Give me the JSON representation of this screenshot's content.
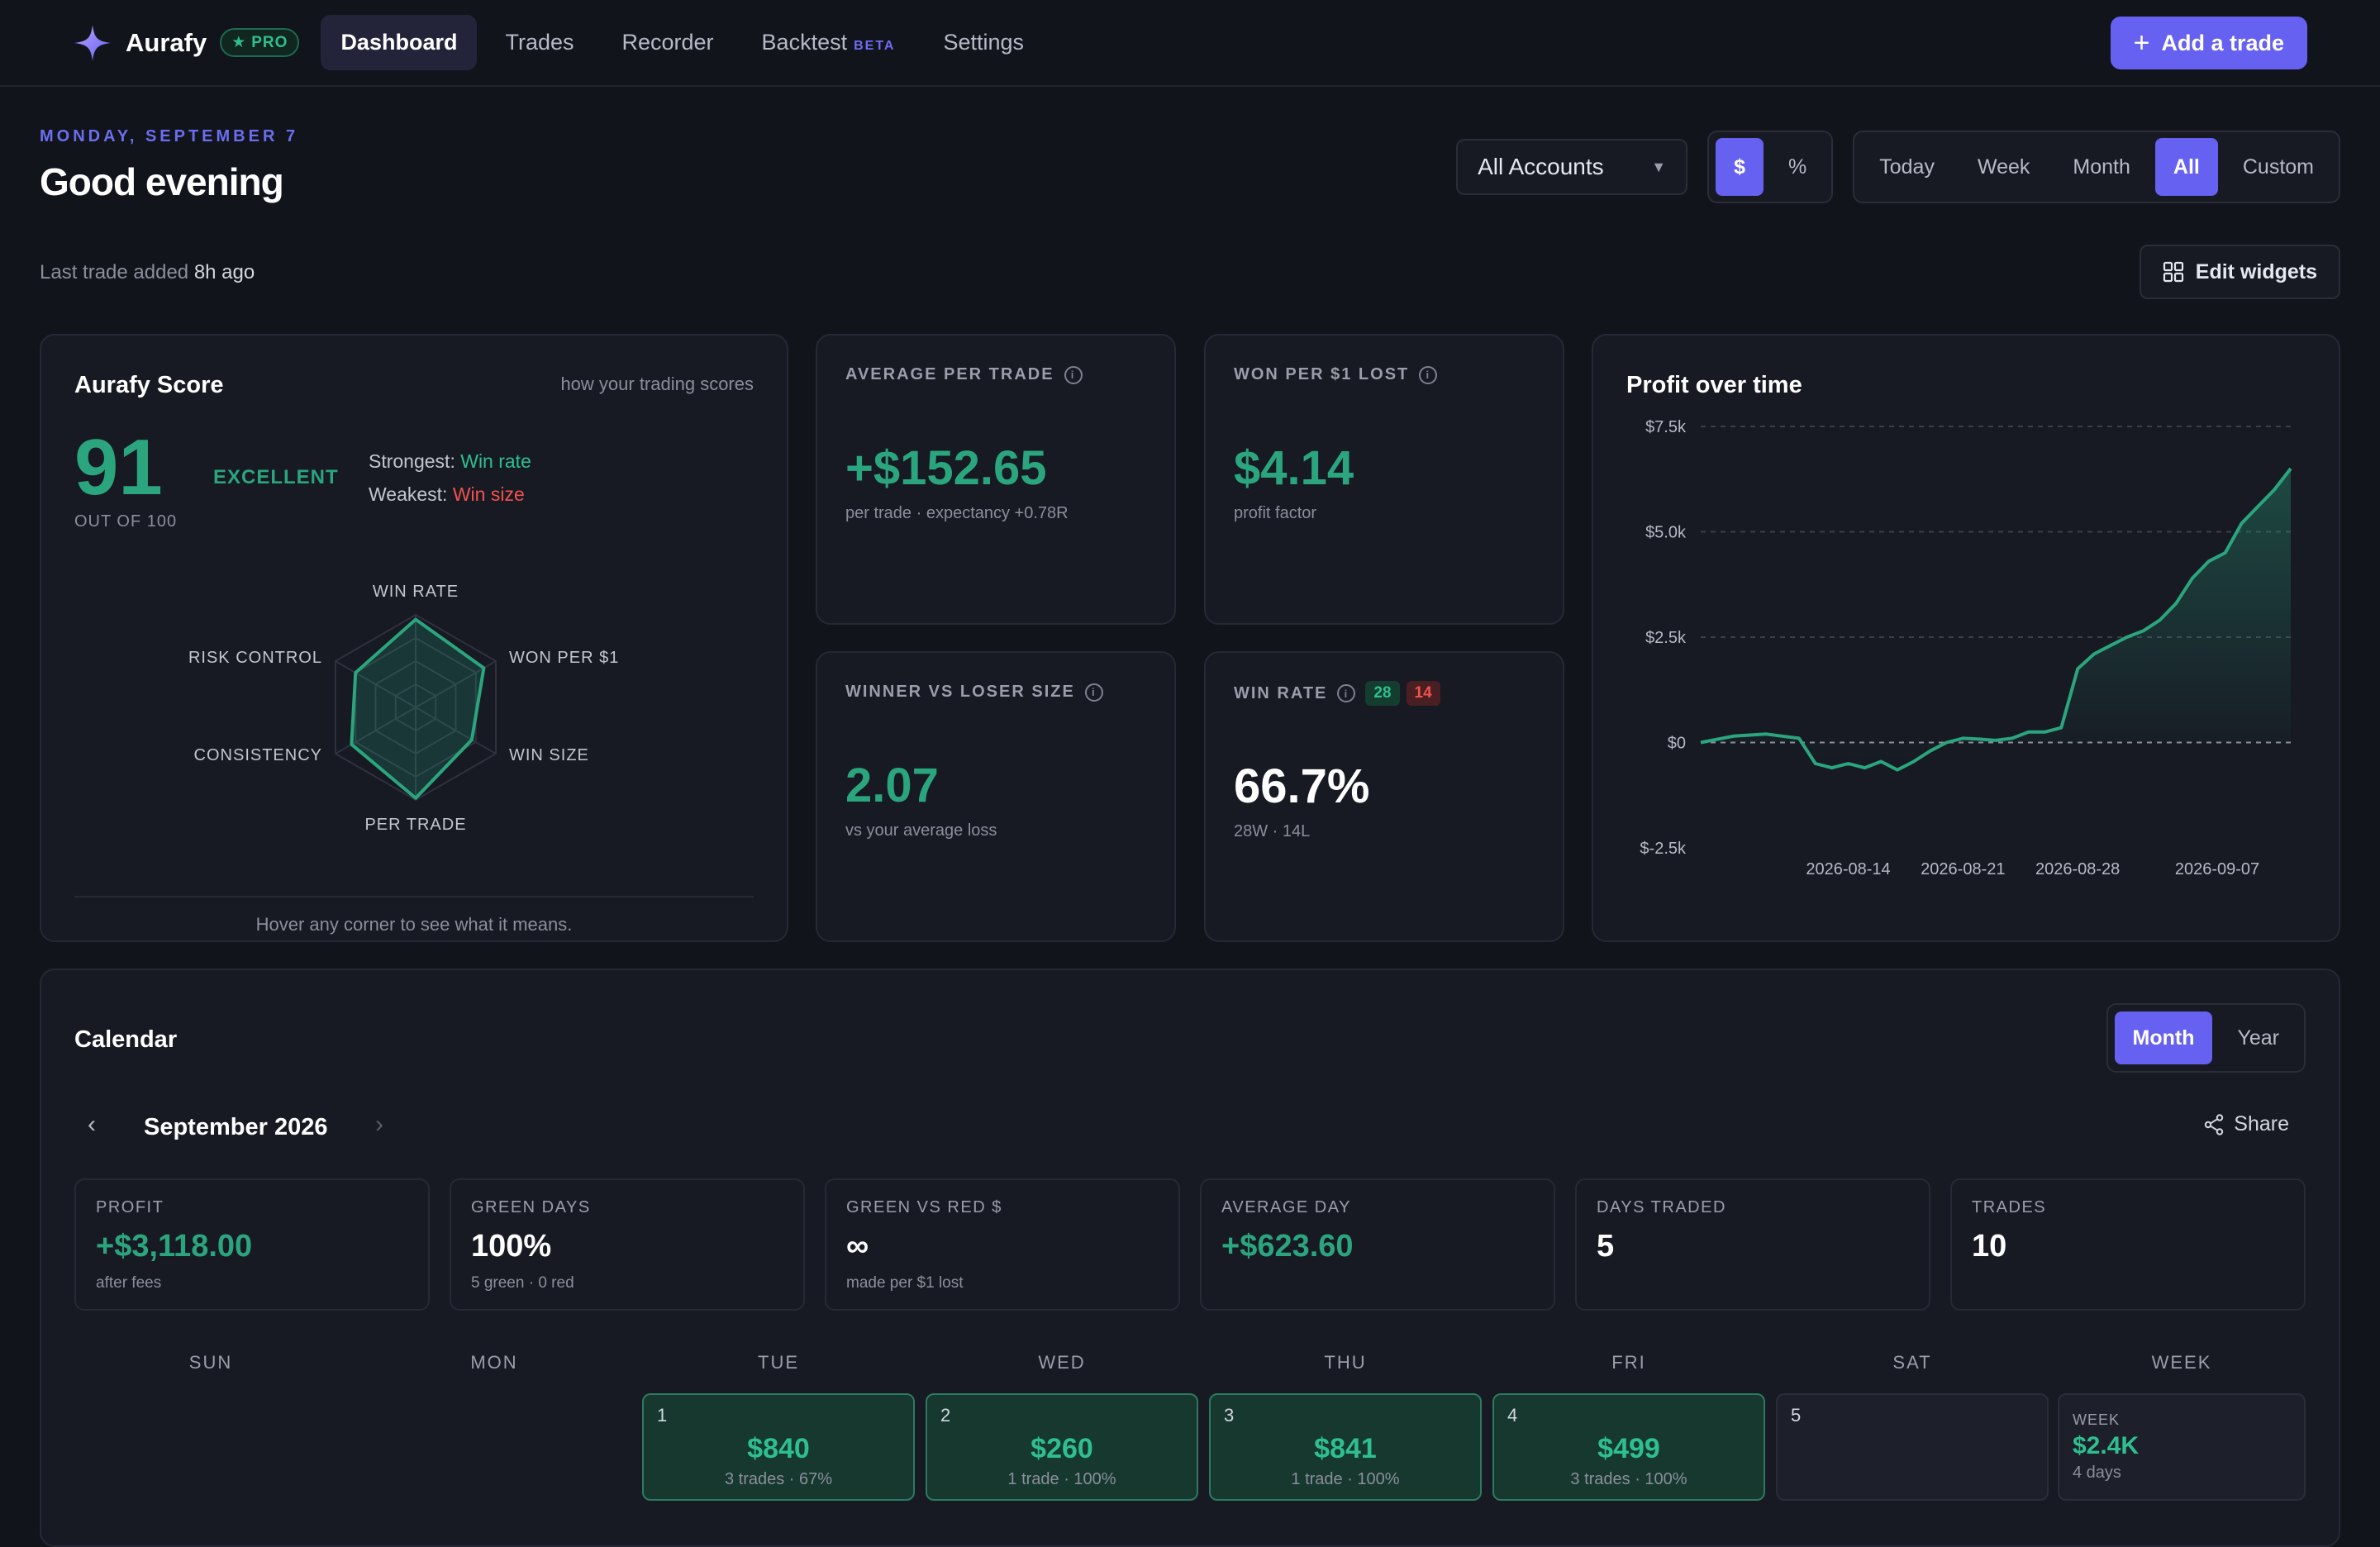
{
  "app": {
    "name": "Aurafy",
    "badge": "PRO",
    "nav": [
      {
        "label": "Dashboard",
        "active": true
      },
      {
        "label": "Trades",
        "active": false
      },
      {
        "label": "Recorder",
        "active": false
      },
      {
        "label": "Backtest",
        "active": false,
        "tag": "BETA"
      },
      {
        "label": "Settings",
        "active": false
      }
    ],
    "add_trade": "Add a trade",
    "accent": "#6661f0"
  },
  "header": {
    "date": "MONDAY, SEPTEMBER 7",
    "greeting": "Good evening",
    "last_trade_prefix": "Last trade added",
    "last_trade_time": "8h ago"
  },
  "controls": {
    "account": "All Accounts",
    "unit_options": [
      "$",
      "%"
    ],
    "unit_selected": "$",
    "range_options": [
      "Today",
      "Week",
      "Month",
      "All",
      "Custom"
    ],
    "range_selected": "All",
    "edit_widgets": "Edit widgets"
  },
  "score": {
    "title": "Aurafy Score",
    "link": "how your trading scores",
    "value": "91",
    "rating": "EXCELLENT",
    "out_of": "OUT OF 100",
    "strongest_label": "Strongest:",
    "strongest": "Win rate",
    "weakest_label": "Weakest:",
    "weakest": "Win size",
    "radar_axes": [
      "WIN RATE",
      "WON PER $1",
      "WIN SIZE",
      "PER TRADE",
      "CONSISTENCY",
      "RISK CONTROL"
    ],
    "radar_values": [
      0.95,
      0.85,
      0.7,
      0.98,
      0.8,
      0.75
    ],
    "hint": "Hover any corner to see what it means."
  },
  "stats": {
    "avg_per_trade": {
      "label": "AVERAGE PER TRADE",
      "value": "+$152.65",
      "sub": "per trade · expectancy +0.78R"
    },
    "won_per_lost": {
      "label": "WON PER $1 LOST",
      "value": "$4.14",
      "sub": "profit factor"
    },
    "winner_loser": {
      "label": "WINNER VS LOSER SIZE",
      "value": "2.07",
      "sub": "vs your average loss"
    },
    "win_rate": {
      "label": "WIN RATE",
      "wins": "28",
      "losses": "14",
      "value": "66.7%",
      "sub": "28W · 14L"
    }
  },
  "chart_data": {
    "type": "area",
    "title": "Profit over time",
    "y_ticks": [
      "$7.5k",
      "$5.0k",
      "$2.5k",
      "$0",
      "$-2.5k"
    ],
    "x_ticks": [
      "2026-08-14",
      "2026-08-21",
      "2026-08-28",
      "2026-09-07"
    ],
    "ylim": [
      -2500,
      7500
    ],
    "grid": true,
    "color": "#2aa57e",
    "series": [
      {
        "values": [
          [
            0,
            0
          ],
          [
            2,
            150
          ],
          [
            4,
            200
          ],
          [
            6,
            100
          ],
          [
            7,
            -500
          ],
          [
            8,
            -600
          ],
          [
            9,
            -500
          ],
          [
            10,
            -600
          ],
          [
            11,
            -450
          ],
          [
            12,
            -650
          ],
          [
            13,
            -450
          ],
          [
            14,
            -200
          ],
          [
            15,
            0
          ],
          [
            16,
            100
          ],
          [
            17,
            80
          ],
          [
            18,
            50
          ],
          [
            19,
            100
          ],
          [
            20,
            250
          ],
          [
            21,
            250
          ],
          [
            22,
            350
          ],
          [
            23,
            1750
          ],
          [
            24,
            2100
          ],
          [
            25,
            2300
          ],
          [
            26,
            2500
          ],
          [
            27,
            2650
          ],
          [
            28,
            2900
          ],
          [
            29,
            3300
          ],
          [
            30,
            3900
          ],
          [
            31,
            4300
          ],
          [
            32,
            4500
          ],
          [
            33,
            5200
          ],
          [
            34,
            5600
          ],
          [
            35,
            6000
          ],
          [
            36,
            6500
          ]
        ]
      }
    ]
  },
  "calendar": {
    "title": "Calendar",
    "view_options": [
      "Month",
      "Year"
    ],
    "view_selected": "Month",
    "month": "September 2026",
    "prev": "‹",
    "next": "›",
    "share": "Share",
    "summary": [
      {
        "label": "PROFIT",
        "value": "+$3,118.00",
        "sub": "after fees",
        "green": true
      },
      {
        "label": "GREEN DAYS",
        "value": "100%",
        "sub": "5 green · 0 red",
        "green": false
      },
      {
        "label": "GREEN VS RED $",
        "value": "∞",
        "sub": "made per $1 lost",
        "green": false
      },
      {
        "label": "AVERAGE DAY",
        "value": "+$623.60",
        "sub": "",
        "green": true
      },
      {
        "label": "DAYS TRADED",
        "value": "5",
        "sub": "",
        "green": false
      },
      {
        "label": "TRADES",
        "value": "10",
        "sub": "",
        "green": false
      }
    ],
    "weekdays": [
      "SUN",
      "MON",
      "TUE",
      "WED",
      "THU",
      "FRI",
      "SAT",
      "WEEK"
    ],
    "days": [
      {
        "num": "1",
        "value": "$840",
        "sub": "3 trades · 67%"
      },
      {
        "num": "2",
        "value": "$260",
        "sub": "1 trade · 100%"
      },
      {
        "num": "3",
        "value": "$841",
        "sub": "1 trade · 100%"
      },
      {
        "num": "4",
        "value": "$499",
        "sub": "3 trades · 100%"
      },
      {
        "num": "5",
        "value": "",
        "sub": ""
      }
    ],
    "week": {
      "label": "WEEK",
      "value": "$2.4K",
      "sub": "4 days"
    }
  }
}
